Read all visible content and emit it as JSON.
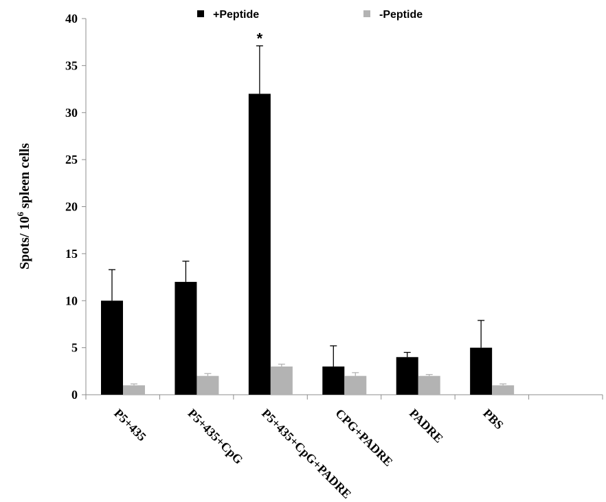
{
  "chart_data": {
    "type": "bar",
    "categories": [
      "P5+435",
      "P5+435+CpG",
      "P5+435+CpG+PADRE",
      "CPG+PADRE",
      "PADRE",
      "PBS",
      ""
    ],
    "series": [
      {
        "name": "+Peptide",
        "color": "#000000",
        "values": [
          10,
          12,
          32,
          3,
          4,
          5,
          null
        ],
        "errors": [
          3.3,
          2.2,
          5.1,
          2.2,
          0.5,
          2.9,
          null
        ]
      },
      {
        "name": "-Peptide",
        "color": "#b3b3b3",
        "values": [
          1,
          2,
          3,
          2,
          2,
          1,
          null
        ],
        "errors": [
          0.15,
          0.25,
          0.25,
          0.35,
          0.15,
          0.15,
          null
        ]
      }
    ],
    "ylabel_main": "Spots/ 10",
    "ylabel_sup": "6",
    "ylabel_tail": " spleen cells",
    "ylim": [
      0,
      40
    ],
    "yticks": [
      0,
      5,
      10,
      15,
      20,
      25,
      30,
      35,
      40
    ],
    "legend_position": "top",
    "annotations": [
      {
        "category": "P5+435+CpG+PADRE",
        "series": "+Peptide",
        "text": "*"
      }
    ],
    "grid": false
  }
}
